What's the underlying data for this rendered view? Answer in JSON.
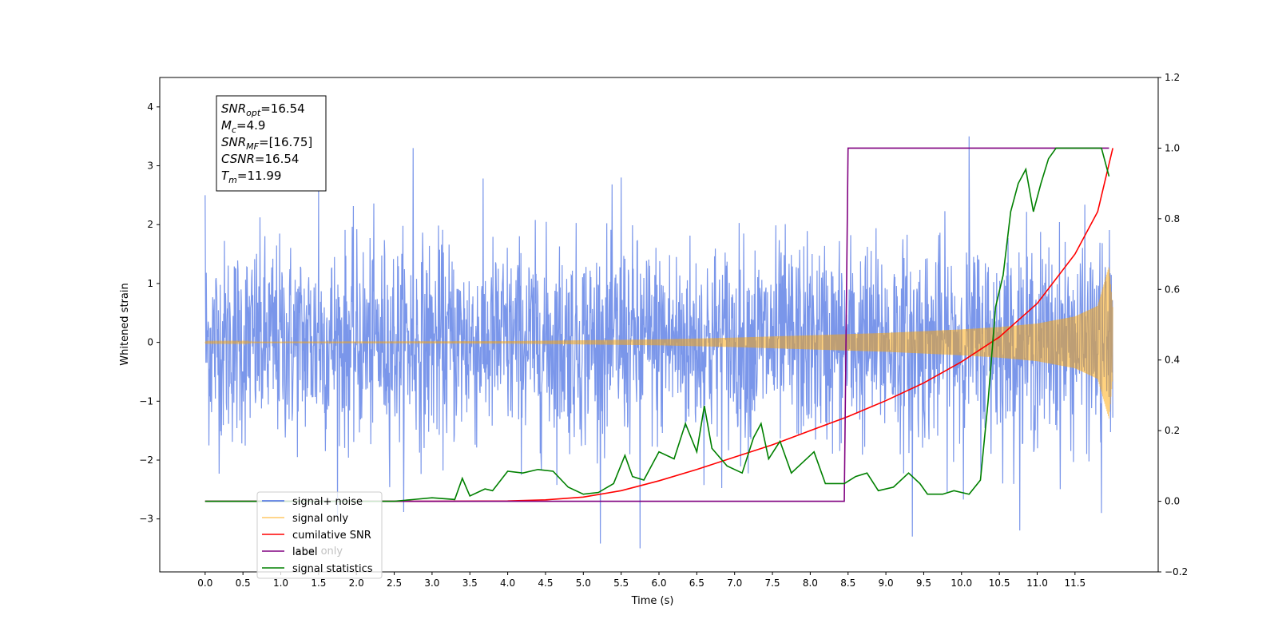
{
  "chart_data": {
    "type": "line",
    "xlabel": "Time (s)",
    "ylabel": "Whitened strain",
    "xlim": [
      -0.6,
      12.6
    ],
    "ylim": [
      -3.9,
      4.5
    ],
    "y2lim": [
      -0.2,
      1.2
    ],
    "x_ticks": [
      0.0,
      0.5,
      1.0,
      1.5,
      2.0,
      2.5,
      3.0,
      3.5,
      4.0,
      4.5,
      5.0,
      5.5,
      6.0,
      6.5,
      7.0,
      7.5,
      8.0,
      8.5,
      9.0,
      9.5,
      10.0,
      10.5,
      11.0,
      11.5
    ],
    "y_ticks": [
      -3,
      -2,
      -1,
      0,
      1,
      2,
      3,
      4
    ],
    "y2_ticks": [
      -0.2,
      0.0,
      0.2,
      0.4,
      0.6,
      0.8,
      1.0,
      1.2
    ],
    "grid": false,
    "legend_location": "lower-left",
    "legend": [
      {
        "label": "signal+ noise",
        "color": "#4169e1"
      },
      {
        "label": "signal only",
        "color": "#ffa500"
      },
      {
        "label": "cumilative SNR",
        "color": "#ff0000"
      },
      {
        "label": "label",
        "color": "#800080"
      },
      {
        "label": "signal statistics",
        "color": "#008000"
      }
    ],
    "legend_hidden_text": [
      "label only"
    ],
    "annotation_lines": [
      {
        "name": "SNR",
        "sub": "opt",
        "value": "=16.54"
      },
      {
        "name": "M",
        "sub": "c",
        "value": "=4.9"
      },
      {
        "name": "SNR",
        "sub": "MF",
        "value": "=[16.75]"
      },
      {
        "name": "CSNR",
        "sub": "",
        "value": "=16.54"
      },
      {
        "name": "T",
        "sub": "m",
        "value": "=11.99"
      }
    ],
    "series": [
      {
        "name": "signal+ noise",
        "axis": "left",
        "color": "#4169e1",
        "description_points": {
          "x": [
            0.0,
            12.0
          ],
          "upper_envelope_typical": 1.8,
          "lower_envelope_typical": -1.8,
          "peaks": [
            [
              0.0,
              2.5
            ],
            [
              1.5,
              2.6
            ],
            [
              2.75,
              3.3
            ],
            [
              5.5,
              2.8
            ],
            [
              10.1,
              3.5
            ],
            [
              5.75,
              -3.5
            ],
            [
              9.35,
              -3.3
            ],
            [
              11.85,
              -2.9
            ]
          ]
        }
      },
      {
        "name": "signal only",
        "axis": "left",
        "color": "#ffa500",
        "envelope": {
          "x": [
            0.0,
            4.0,
            6.0,
            7.0,
            8.0,
            9.0,
            10.0,
            10.5,
            11.0,
            11.5,
            11.8,
            11.95,
            12.0
          ],
          "amp": [
            0.01,
            0.02,
            0.05,
            0.08,
            0.12,
            0.16,
            0.22,
            0.26,
            0.32,
            0.44,
            0.62,
            1.3,
            0.6
          ]
        }
      },
      {
        "name": "cumilative SNR",
        "axis": "right",
        "color": "#ff0000",
        "x": [
          0.0,
          3.0,
          4.0,
          4.5,
          5.0,
          5.5,
          6.0,
          6.5,
          7.0,
          7.5,
          8.0,
          8.5,
          9.0,
          9.5,
          10.0,
          10.5,
          11.0,
          11.5,
          11.8,
          12.0
        ],
        "y": [
          0.0,
          0.0,
          0.001,
          0.004,
          0.012,
          0.03,
          0.058,
          0.09,
          0.125,
          0.16,
          0.2,
          0.24,
          0.285,
          0.335,
          0.395,
          0.465,
          0.56,
          0.7,
          0.82,
          1.0
        ]
      },
      {
        "name": "label",
        "axis": "right",
        "color": "#800080",
        "x": [
          0.0,
          8.45,
          8.5,
          11.95
        ],
        "y": [
          0.0,
          0.0,
          1.0,
          1.0
        ]
      },
      {
        "name": "signal statistics",
        "axis": "right",
        "color": "#008000",
        "x": [
          0.0,
          2.0,
          2.5,
          2.75,
          3.0,
          3.3,
          3.4,
          3.5,
          3.7,
          3.8,
          4.0,
          4.2,
          4.4,
          4.6,
          4.8,
          5.0,
          5.2,
          5.4,
          5.55,
          5.65,
          5.8,
          6.0,
          6.2,
          6.35,
          6.5,
          6.6,
          6.7,
          6.9,
          7.1,
          7.25,
          7.35,
          7.45,
          7.6,
          7.75,
          7.9,
          8.05,
          8.2,
          8.45,
          8.6,
          8.75,
          8.9,
          9.1,
          9.3,
          9.45,
          9.55,
          9.75,
          9.9,
          10.1,
          10.25,
          10.35,
          10.45,
          10.55,
          10.65,
          10.75,
          10.85,
          10.95,
          11.05,
          11.15,
          11.25,
          11.5,
          11.75,
          11.85,
          11.95
        ],
        "y": [
          0.0,
          0.0,
          0.0,
          0.005,
          0.01,
          0.005,
          0.065,
          0.015,
          0.035,
          0.03,
          0.085,
          0.08,
          0.09,
          0.085,
          0.04,
          0.02,
          0.025,
          0.05,
          0.13,
          0.07,
          0.06,
          0.14,
          0.12,
          0.22,
          0.14,
          0.27,
          0.15,
          0.1,
          0.08,
          0.18,
          0.22,
          0.12,
          0.17,
          0.08,
          0.11,
          0.14,
          0.05,
          0.05,
          0.07,
          0.08,
          0.03,
          0.04,
          0.08,
          0.05,
          0.02,
          0.02,
          0.03,
          0.02,
          0.06,
          0.28,
          0.55,
          0.64,
          0.82,
          0.9,
          0.94,
          0.82,
          0.9,
          0.97,
          1.0,
          1.0,
          1.0,
          1.0,
          0.92
        ]
      }
    ]
  }
}
